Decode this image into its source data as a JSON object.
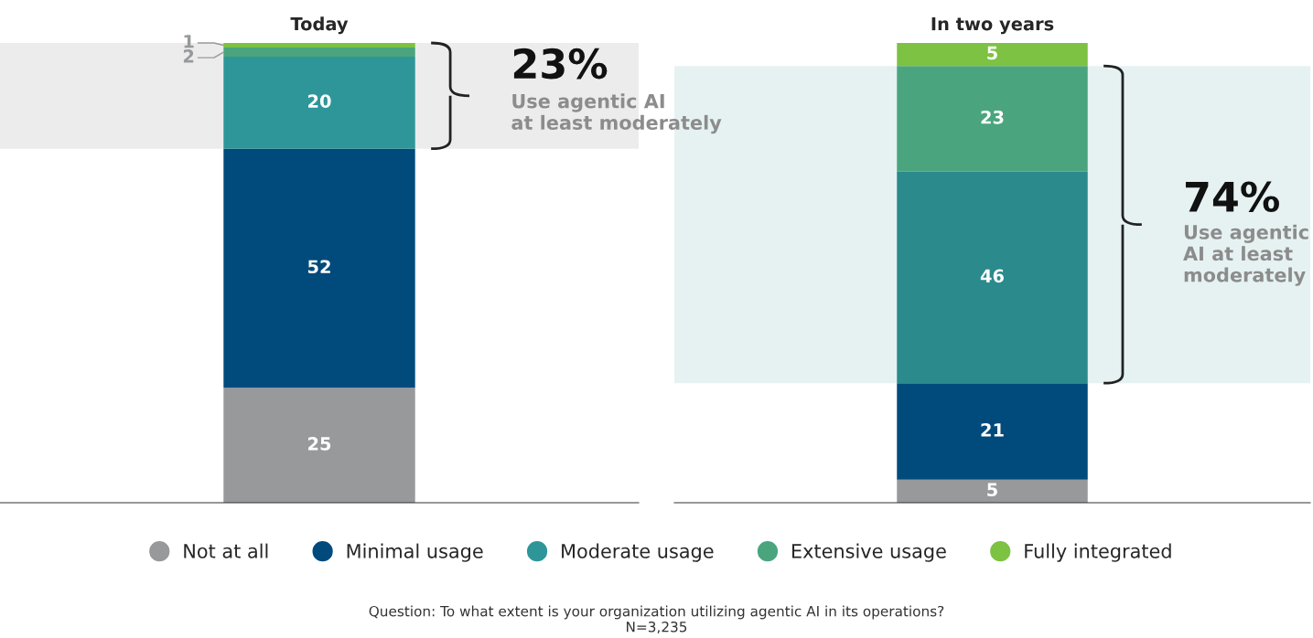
{
  "chart_data": [
    {
      "type": "bar",
      "stacked": true,
      "title": "Today",
      "categories": [
        null
      ],
      "legend": "bottom",
      "series": [
        {
          "name": "Not at all",
          "color": "#97999b",
          "values": [
            25
          ],
          "value_labels": [
            "25"
          ]
        },
        {
          "name": "Minimal usage",
          "color": "#004a7c",
          "values": [
            52
          ],
          "value_labels": [
            "52"
          ]
        },
        {
          "name": "Moderate usage",
          "color": "#2e9699",
          "values": [
            20
          ],
          "value_labels": [
            "20"
          ]
        },
        {
          "name": "Extensive usage",
          "color": "#4aa57e",
          "values": [
            2
          ],
          "value_labels": [
            "2"
          ]
        },
        {
          "name": "Fully integrated",
          "color": "#7dc242",
          "values": [
            1
          ],
          "value_labels": [
            "1"
          ]
        }
      ],
      "bands": [
        {
          "axis": "y",
          "from": 77,
          "to": 100,
          "color": "#ececec"
        }
      ],
      "annotations": [
        "23%",
        "Use agentic AI\nat least moderately"
      ]
    },
    {
      "type": "bar",
      "stacked": true,
      "title": "In two years",
      "categories": [
        null
      ],
      "data_labels": true,
      "legend": "bottom",
      "series": [
        {
          "name": "Not at all",
          "color": "#97999b",
          "values": [
            5
          ]
        },
        {
          "name": "Minimal usage",
          "color": "#004a7c",
          "values": [
            21
          ]
        },
        {
          "name": "Moderate usage",
          "color": "#2a8a8c",
          "values": [
            46
          ]
        },
        {
          "name": "Extensive usage",
          "color": "#4aa57e",
          "values": [
            23
          ]
        },
        {
          "name": "Fully integrated",
          "color": "#7dc242",
          "values": [
            5
          ]
        }
      ],
      "bands": [
        {
          "axis": "y",
          "from": 26,
          "to": 95,
          "color": "#e6f2f2"
        }
      ],
      "annotations": [
        "74%",
        "Use agentic\nAI at least\nmoderately",
        "Question: To what extent is your organization utilizing agentic AI in its operations?\nN=3,235"
      ]
    }
  ]
}
